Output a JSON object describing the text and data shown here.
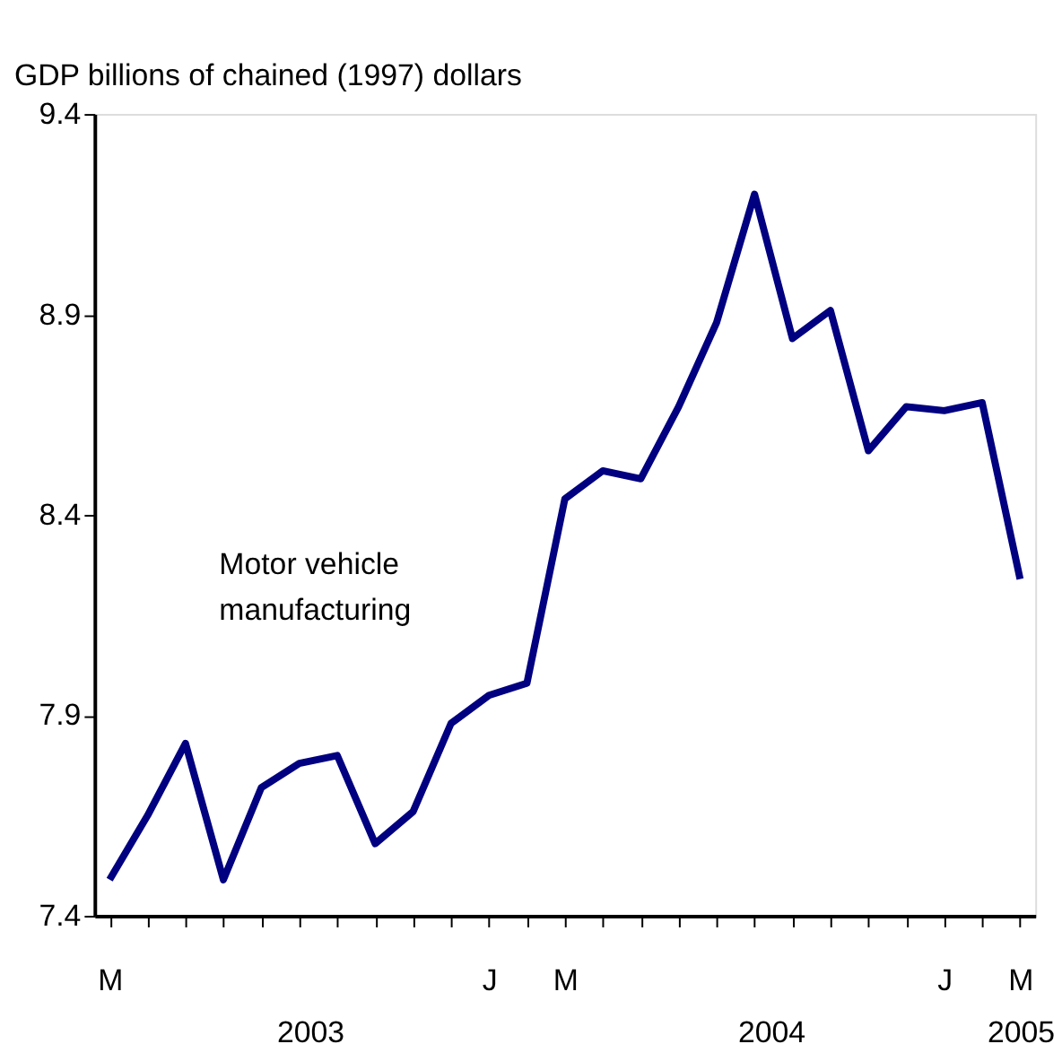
{
  "chart_data": {
    "type": "line",
    "ylabel": "GDP billions of chained (1997) dollars",
    "categories": [
      "M",
      null,
      null,
      null,
      null,
      null,
      null,
      null,
      null,
      null,
      "J",
      null,
      "M",
      null,
      null,
      null,
      null,
      null,
      null,
      null,
      null,
      null,
      "J",
      null,
      "M"
    ],
    "series": [
      {
        "name": "Motor vehicle manufacturing",
        "color": "#000080",
        "values": [
          7.49,
          7.65,
          7.83,
          7.49,
          7.72,
          7.78,
          7.8,
          7.58,
          7.66,
          7.88,
          7.95,
          7.98,
          8.44,
          8.51,
          8.49,
          8.67,
          8.88,
          9.2,
          8.84,
          8.91,
          8.56,
          8.67,
          8.66,
          8.68,
          8.24
        ]
      }
    ],
    "ylim": [
      7.4,
      9.4
    ],
    "yticks": [
      7.4,
      7.9,
      8.4,
      8.9,
      9.4
    ],
    "annotations": [
      "2003",
      "2004",
      "2005"
    ],
    "grid": false,
    "legend": false,
    "marker": "none",
    "line_style": "solid"
  }
}
